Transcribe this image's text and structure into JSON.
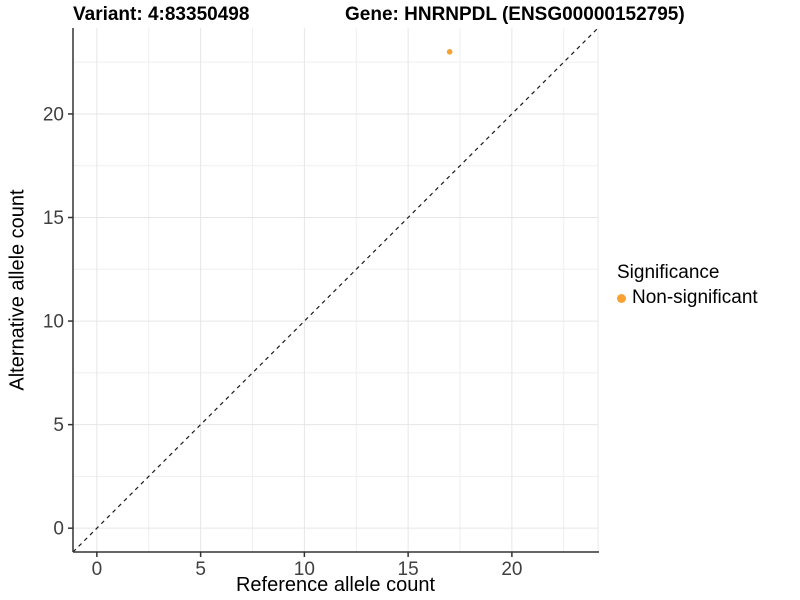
{
  "header": {
    "variant_title": "Variant: 4:83350498",
    "gene_title": "Gene: HNRNPDL (ENSG00000152795)"
  },
  "legend": {
    "title": "Significance",
    "items": [
      {
        "label": "Non-significant",
        "color": "#F9A232"
      }
    ]
  },
  "colors": {
    "background": "#FFFFFF",
    "grid_major": "#E6E6E6",
    "grid_minor": "#EFEFEF",
    "panel_border": "#E9E9E9",
    "axis_line": "#333333",
    "tick_mark": "#333333",
    "tick_label": "#404040",
    "identity_line": "#1A1A1A",
    "point": "#F9A232"
  },
  "chart_data": {
    "type": "scatter",
    "xlabel": "Reference allele count",
    "ylabel": "Alternative allele count",
    "xlim": [
      -1.15,
      24.15
    ],
    "ylim": [
      -1.15,
      24.15
    ],
    "x_ticks": [
      0,
      5,
      10,
      15,
      20
    ],
    "y_ticks": [
      0,
      5,
      10,
      15,
      20
    ],
    "x_minor_ticks": [
      2.5,
      7.5,
      12.5,
      17.5,
      22.5
    ],
    "y_minor_ticks": [
      2.5,
      7.5,
      12.5,
      17.5,
      22.5
    ],
    "grid": "major+minor",
    "legend_position": "right",
    "abline": {
      "slope": 1,
      "intercept": 0,
      "style": "dashed"
    },
    "series": [
      {
        "name": "Non-significant",
        "color": "#F9A232",
        "points": [
          {
            "x": 17,
            "y": 23
          }
        ]
      }
    ]
  }
}
